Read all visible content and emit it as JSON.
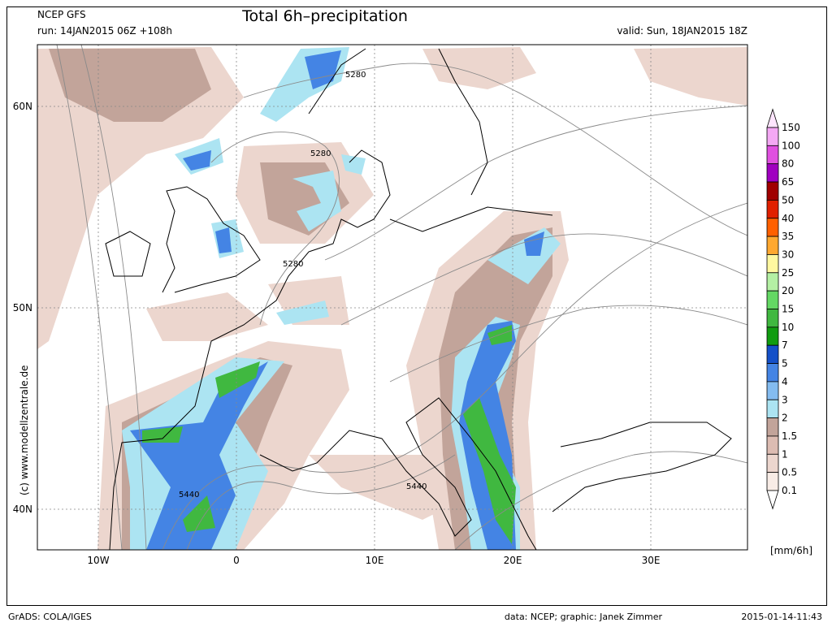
{
  "header": {
    "model": "NCEP GFS",
    "run": "run: 14JAN2015 06Z +108h",
    "title": "Total 6h–precipitation",
    "valid": "valid: Sun, 18JAN2015 18Z"
  },
  "map": {
    "lat_labels": [
      "60N",
      "50N",
      "40N"
    ],
    "lon_labels": [
      "10W",
      "0",
      "10E",
      "20E",
      "30E"
    ],
    "contour_labels": [
      "5280",
      "5280",
      "5280",
      "5440",
      "5440"
    ],
    "copyright": "(c) www.modellzentrale.de"
  },
  "colorbar": {
    "levels": [
      150,
      100,
      80,
      65,
      50,
      40,
      35,
      30,
      25,
      20,
      15,
      10,
      7,
      5,
      4,
      3,
      2,
      1.5,
      1,
      0.5,
      0.1
    ],
    "colors": [
      "#ffe6ff",
      "#f4a8f4",
      "#e050e0",
      "#a000c0",
      "#a00000",
      "#e02000",
      "#ff6000",
      "#ffa830",
      "#fff8a0",
      "#b4f0a4",
      "#64d864",
      "#40b840",
      "#109c10",
      "#1450c8",
      "#4484e4",
      "#84bcf0",
      "#ace4f2",
      "#c2a49a",
      "#dcbcb2",
      "#ecd6ce",
      "#f8ece6",
      "#ffffff"
    ],
    "unit": "[mm/6h]"
  },
  "footer": {
    "software": "GrADS: COLA/IGES",
    "credits": "data: NCEP; graphic: Janek Zimmer",
    "timestamp": "2015-01-14-11:43"
  }
}
